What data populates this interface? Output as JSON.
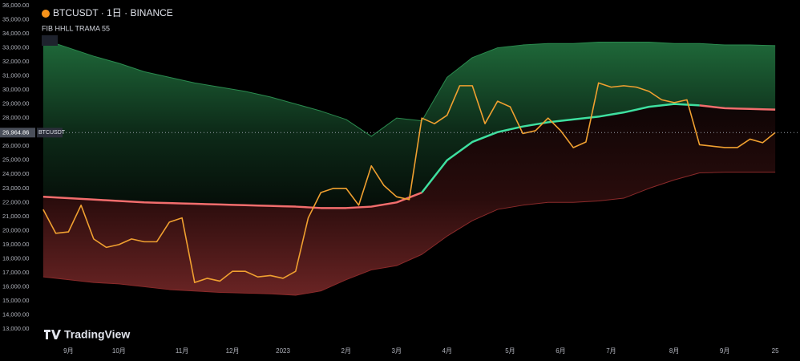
{
  "chart_data": {
    "type": "line",
    "title": "BTCUSDT · 1日 · BINANCE",
    "subtitle": "FIB HHLL TRAMA 55",
    "watermark": "TradingView",
    "symbol_tag": "BTCUSDT",
    "categories": [
      null,
      null,
      "9月",
      null,
      null,
      null,
      "10月",
      null,
      null,
      null,
      null,
      "11月",
      null,
      null,
      null,
      "12月",
      null,
      null,
      null,
      "2023",
      null,
      null,
      null,
      null,
      "2月",
      null,
      null,
      null,
      "3月",
      null,
      null,
      null,
      "4月",
      null,
      null,
      null,
      null,
      "5月",
      null,
      null,
      null,
      "6月",
      null,
      null,
      null,
      "7月",
      null,
      null,
      null,
      null,
      "8月",
      null,
      null,
      null,
      "9月",
      null,
      null,
      null,
      "25"
    ],
    "ylim": [
      13000,
      36000
    ],
    "yticks": [
      {
        "value": 13000,
        "label": "13,000.00"
      },
      {
        "value": 14000,
        "label": "14,000.00"
      },
      {
        "value": 15000,
        "label": "15,000.00"
      },
      {
        "value": 16000,
        "label": "16,000.00"
      },
      {
        "value": 17000,
        "label": "17,000.00"
      },
      {
        "value": 18000,
        "label": "18,000.00"
      },
      {
        "value": 19000,
        "label": "19,000.00"
      },
      {
        "value": 20000,
        "label": "20,000.00"
      },
      {
        "value": 21000,
        "label": "21,000.00"
      },
      {
        "value": 22000,
        "label": "22,000.00"
      },
      {
        "value": 23000,
        "label": "23,000.00"
      },
      {
        "value": 24000,
        "label": "24,000.00"
      },
      {
        "value": 25000,
        "label": "25,000.00"
      },
      {
        "value": 26000,
        "label": "26,000.00"
      },
      {
        "value": 27000,
        "label": "27,000.00"
      },
      {
        "value": 28000,
        "label": "28,000.00"
      },
      {
        "value": 29000,
        "label": "29,000.00"
      },
      {
        "value": 30000,
        "label": "30,000.00"
      },
      {
        "value": 31000,
        "label": "31,000.00"
      },
      {
        "value": 32000,
        "label": "32,000.00"
      },
      {
        "value": 33000,
        "label": "33,000.00"
      },
      {
        "value": 34000,
        "label": "34,000.00"
      },
      {
        "value": 35000,
        "label": "35,000.00"
      },
      {
        "value": 36000,
        "label": "36,000.00"
      }
    ],
    "grid": false,
    "series": [
      {
        "color": "#f0a030",
        "values": [
          21500,
          19800,
          19900,
          21800,
          19400,
          18800,
          19000,
          19400,
          19200,
          19200,
          20600,
          20900,
          16300,
          16600,
          16400,
          17100,
          17100,
          16700,
          16800,
          16600,
          17100,
          20900,
          22700,
          23000,
          23000,
          21800,
          24600,
          23200,
          22400,
          22200,
          28000,
          27600,
          28200,
          30300,
          30300,
          27600,
          29200,
          28800,
          26900,
          27100,
          28000,
          27100,
          25900,
          26300,
          30500,
          30200,
          30300,
          30200,
          29900,
          29300,
          29100,
          29300,
          26100,
          26000,
          25900,
          25900,
          26500,
          26250,
          26964.86
        ],
        "value_labels": [
          null,
          null,
          null,
          null,
          null,
          null,
          null,
          null,
          null,
          null,
          null,
          null,
          null,
          null,
          null,
          null,
          null,
          null,
          null,
          null,
          null,
          null,
          null,
          null,
          null,
          null,
          null,
          null,
          null,
          null,
          null,
          null,
          null,
          null,
          null,
          null,
          null,
          null,
          null,
          null,
          null,
          null,
          null,
          null,
          null,
          null,
          null,
          null,
          null,
          null,
          null,
          null,
          null,
          null,
          null,
          null,
          null,
          null,
          "26,964.86"
        ]
      },
      {
        "color": "#2a8a4e",
        "values": [
          33600,
          33300,
          33000,
          32700,
          32400,
          32150,
          31900,
          31600,
          31300,
          31100,
          30900,
          30700,
          30500,
          30350,
          30200,
          30050,
          29900,
          29700,
          29500,
          29250,
          29000,
          28750,
          28500,
          28200,
          27900,
          27300,
          26700,
          27350,
          28000,
          27900,
          27800,
          29350,
          30900,
          31600,
          32300,
          32650,
          33000,
          33100,
          33200,
          33250,
          33300,
          33300,
          33300,
          33350,
          33400,
          33400,
          33400,
          33400,
          33400,
          33350,
          33300,
          33300,
          33300,
          33250,
          33200,
          33200,
          33200,
          33175,
          33150
        ]
      },
      {
        "color": "#8a2a2a",
        "values": [
          16700,
          16600,
          16500,
          16400,
          16300,
          16250,
          16200,
          16100,
          16000,
          15900,
          15800,
          15750,
          15700,
          15650,
          15600,
          15575,
          15550,
          15525,
          15500,
          15450,
          15400,
          15550,
          15700,
          16100,
          16500,
          16850,
          17200,
          17350,
          17500,
          17900,
          18300,
          18950,
          19600,
          20150,
          20700,
          21100,
          21500,
          21650,
          21800,
          21900,
          22000,
          22000,
          22000,
          22050,
          22100,
          22200,
          22300,
          22650,
          23000,
          23300,
          23600,
          23850,
          24100,
          24125,
          24150,
          24150,
          24150,
          24150,
          24150
        ]
      },
      {
        "color": "#f26d6d",
        "values": [
          22400,
          22350,
          22300,
          22250,
          22200,
          22150,
          22100,
          22050,
          22000,
          21975,
          21950,
          21925,
          21900,
          21875,
          21850,
          21825,
          21800,
          21775,
          21750,
          21725,
          21700,
          21650,
          21600,
          21600,
          21600,
          21650,
          21700,
          21850,
          22000,
          22350,
          22700,
          null,
          null,
          null,
          null,
          null,
          null,
          null,
          null,
          null,
          null,
          null,
          null,
          null,
          null,
          null,
          null,
          null,
          null,
          null,
          null,
          null,
          28900,
          28800,
          28700,
          28675,
          28650,
          28625,
          28600
        ]
      },
      {
        "color": "#3ee0a0",
        "values": [
          null,
          null,
          null,
          null,
          null,
          null,
          null,
          null,
          null,
          null,
          null,
          null,
          null,
          null,
          null,
          null,
          null,
          null,
          null,
          null,
          null,
          null,
          null,
          null,
          null,
          null,
          null,
          null,
          null,
          null,
          22700,
          23850,
          25000,
          25650,
          26300,
          26650,
          27000,
          27200,
          27400,
          27550,
          27700,
          27800,
          27900,
          28000,
          28100,
          28250,
          28400,
          28600,
          28800,
          28900,
          29000,
          28950,
          28900,
          null,
          null,
          null,
          null,
          null,
          null
        ]
      }
    ]
  }
}
